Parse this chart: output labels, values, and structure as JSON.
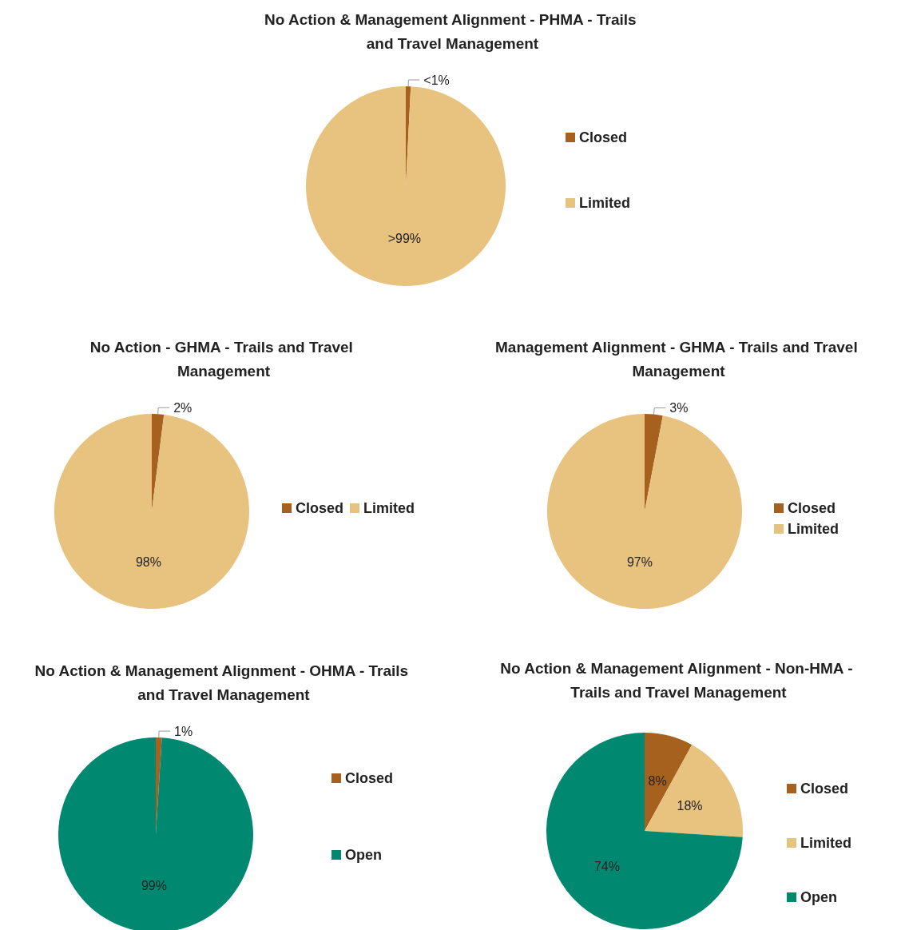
{
  "chart_data": [
    {
      "type": "pie",
      "title": "No Action & Management Alignment - PHMA - Trails and Travel Management",
      "categories": [
        "Closed",
        "Limited"
      ],
      "values": [
        0.8,
        99.2
      ],
      "colors": [
        "#a5611d",
        "#e8c27f"
      ],
      "value_labels": [
        "<1%",
        ">99%"
      ],
      "legend": "right"
    },
    {
      "type": "pie",
      "title": "No Action - GHMA - Trails and Travel Management",
      "categories": [
        "Closed",
        "Limited"
      ],
      "values": [
        2,
        98
      ],
      "colors": [
        "#a5611d",
        "#e8c27f"
      ],
      "value_labels": [
        "2%",
        "98%"
      ],
      "legend": "right"
    },
    {
      "type": "pie",
      "title": "Management Alignment - GHMA - Trails and Travel Management",
      "categories": [
        "Closed",
        "Limited"
      ],
      "values": [
        3,
        97
      ],
      "colors": [
        "#a5611d",
        "#e8c27f"
      ],
      "value_labels": [
        "3%",
        "97%"
      ],
      "legend": "right"
    },
    {
      "type": "pie",
      "title": "No Action & Management Alignment - OHMA - Trails and Travel Management",
      "categories": [
        "Closed",
        "Open"
      ],
      "values": [
        1,
        99
      ],
      "colors": [
        "#a5611d",
        "#008870"
      ],
      "value_labels": [
        "1%",
        "99%"
      ],
      "legend": "right"
    },
    {
      "type": "pie",
      "title": "No Action & Management Alignment - Non-HMA - Trails and Travel Management",
      "categories": [
        "Closed",
        "Limited",
        "Open"
      ],
      "values": [
        8,
        18,
        74
      ],
      "colors": [
        "#a5611d",
        "#e8c27f",
        "#008870"
      ],
      "value_labels": [
        "8%",
        "18%",
        "74%"
      ],
      "legend": "right"
    }
  ]
}
